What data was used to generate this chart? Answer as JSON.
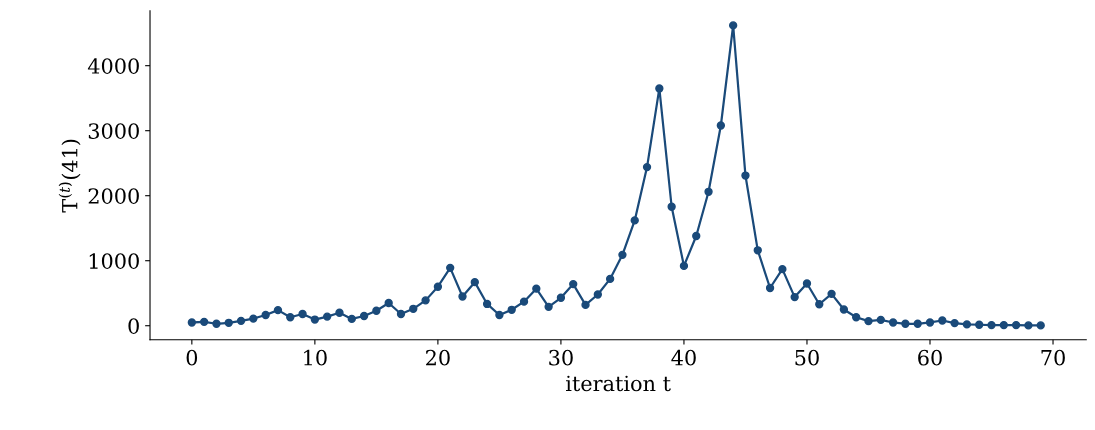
{
  "chart_data": {
    "type": "line",
    "xlabel": "iteration t",
    "ylabel": "T$^{(t)}$(41)",
    "x": [
      0,
      1,
      2,
      3,
      4,
      5,
      6,
      7,
      8,
      9,
      10,
      11,
      12,
      13,
      14,
      15,
      16,
      17,
      18,
      19,
      20,
      21,
      22,
      23,
      24,
      25,
      26,
      27,
      28,
      29,
      30,
      31,
      32,
      33,
      34,
      35,
      36,
      37,
      38,
      39,
      40,
      41,
      42,
      43,
      44,
      45,
      46,
      47,
      48,
      49,
      50,
      51,
      52,
      53,
      54,
      55,
      56,
      57,
      58,
      59,
      60,
      61,
      62,
      63,
      64,
      65,
      66,
      67,
      68,
      69
    ],
    "series": [
      {
        "color": "#1a4a7a",
        "values": [
          50,
          60,
          30,
          45,
          75,
          110,
          165,
          240,
          130,
          180,
          95,
          140,
          200,
          105,
          150,
          230,
          350,
          180,
          260,
          390,
          600,
          890,
          450,
          670,
          335,
          165,
          245,
          370,
          570,
          290,
          430,
          640,
          320,
          480,
          720,
          1090,
          1620,
          2440,
          3650,
          1830,
          920,
          1380,
          2060,
          3080,
          4620,
          2310,
          1160,
          580,
          870,
          440,
          650,
          330,
          490,
          250,
          130,
          70,
          90,
          50,
          30,
          30,
          50,
          80,
          40,
          20,
          15,
          10,
          10,
          10,
          5,
          5
        ]
      }
    ],
    "xlim": [
      -3.4,
      72.7
    ],
    "ylim": [
      -215,
      4845
    ],
    "xticks": [
      0,
      10,
      20,
      30,
      40,
      50,
      60,
      70
    ],
    "yticks": [
      0,
      1000,
      2000,
      3000,
      4000
    ],
    "marker": "circle",
    "line_style": "solid",
    "grid": false,
    "legend": false
  }
}
